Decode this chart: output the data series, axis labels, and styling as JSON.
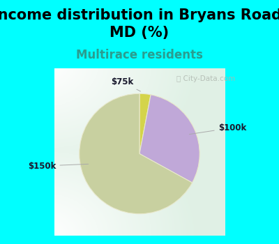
{
  "title": "Income distribution in Bryans Road,\nMD (%)",
  "subtitle": "Multirace residents",
  "title_fontsize": 15,
  "subtitle_fontsize": 12,
  "title_color": "#000000",
  "subtitle_color": "#2a9d8f",
  "background_color": "#00FFFF",
  "chart_bg_top_left": "#b8ddd0",
  "chart_bg_center": "#f0f8f0",
  "slices": [
    {
      "label": "$75k",
      "value": 3,
      "color": "#d4d44a"
    },
    {
      "label": "$100k",
      "value": 30,
      "color": "#c0a8d8"
    },
    {
      "label": "$150k",
      "value": 67,
      "color": "#c8d0a0"
    }
  ],
  "watermark": "ⓘ City-Data.com",
  "figsize": [
    4.0,
    3.5
  ],
  "dpi": 100
}
